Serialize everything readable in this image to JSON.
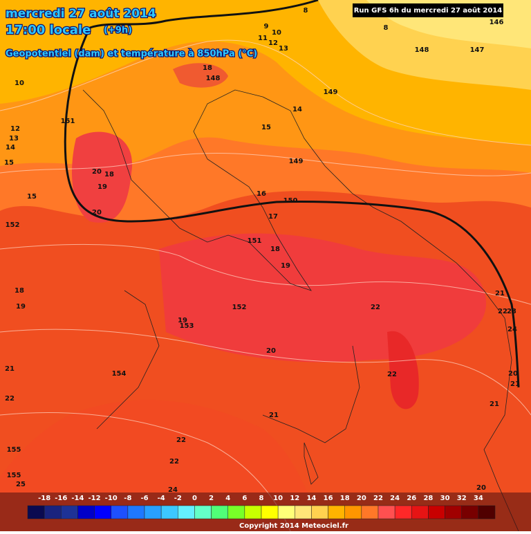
{
  "header": {
    "date": "mercredi 27 août 2014",
    "time": "17:00 locale",
    "offset": "(+9h)",
    "subtitle": "Geopotentiel (dam) et température à 850hPa (°C)"
  },
  "run": "Run GFS 6h du mercredi 27 août 2014",
  "contour_labels": [
    "8",
    "9",
    "10",
    "11",
    "12",
    "13",
    "18",
    "148",
    "10",
    "149",
    "151",
    "14",
    "12",
    "13",
    "14",
    "15",
    "15",
    "149",
    "20",
    "18",
    "19",
    "15",
    "16",
    "150",
    "20",
    "17",
    "152",
    "151",
    "18",
    "19",
    "18",
    "19",
    "152",
    "22",
    "21",
    "22",
    "23",
    "19",
    "153",
    "24",
    "20",
    "21",
    "154",
    "22",
    "20",
    "21",
    "22",
    "21",
    "21",
    "22",
    "155",
    "22",
    "155",
    "25",
    "24",
    "20",
    "146",
    "148",
    "147",
    "8"
  ],
  "legend": {
    "labels": [
      -18,
      -16,
      -14,
      -12,
      -10,
      -8,
      -6,
      -4,
      -2,
      0,
      2,
      4,
      6,
      8,
      10,
      12,
      14,
      16,
      18,
      20,
      22,
      24,
      26,
      28,
      30,
      32,
      34
    ],
    "colors": [
      "#0a0a50",
      "#1a237e",
      "#1e3296",
      "#0000c8",
      "#0000ff",
      "#1e50ff",
      "#1e78ff",
      "#28a0ff",
      "#3cc8ff",
      "#64f0ff",
      "#64ffc8",
      "#50ff78",
      "#78ff28",
      "#c8ff00",
      "#ffff00",
      "#ffff78",
      "#ffe678",
      "#ffd250",
      "#ffb400",
      "#ff9600",
      "#ff7828",
      "#ff5050",
      "#ff2828",
      "#e61414",
      "#c80000",
      "#a00000",
      "#780000",
      "#500000"
    ]
  },
  "copyright": "Copyright 2014 Meteociel.fr"
}
